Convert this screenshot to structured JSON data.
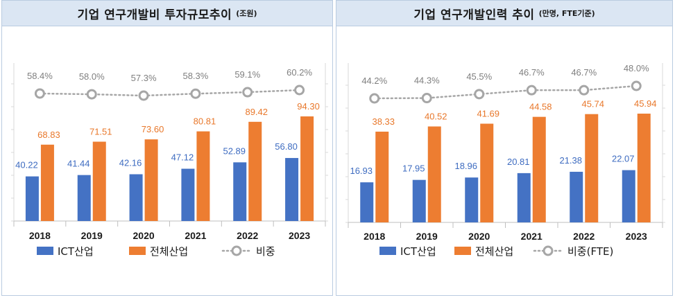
{
  "charts": [
    {
      "title": "기업 연구개발비 투자규모추이",
      "unit": "(조원)",
      "chart_data": {
        "type": "bar",
        "categories": [
          "2018",
          "2019",
          "2020",
          "2021",
          "2022",
          "2023"
        ],
        "series": [
          {
            "name": "ICT산업",
            "values": [
              40.22,
              41.44,
              42.16,
              47.12,
              52.89,
              56.8
            ],
            "labels": [
              "40.22",
              "41.44",
              "42.16",
              "47.12",
              "52.89",
              "56.80"
            ]
          },
          {
            "name": "전체산업",
            "values": [
              68.83,
              71.51,
              73.6,
              80.81,
              89.42,
              94.3
            ],
            "labels": [
              "68.83",
              "71.51",
              "73.60",
              "80.81",
              "89.42",
              "94.30"
            ]
          }
        ],
        "line": {
          "name": "비중",
          "values": [
            58.4,
            58.0,
            57.3,
            58.3,
            59.1,
            60.2
          ],
          "labels": [
            "58.4%",
            "58.0%",
            "57.3%",
            "58.3%",
            "59.1%",
            "60.2%"
          ]
        },
        "legend_position": "bottom",
        "gridlines": false
      }
    },
    {
      "title": "기업 연구개발인력 추이",
      "unit": "(만명, FTE기준)",
      "chart_data": {
        "type": "bar",
        "categories": [
          "2018",
          "2019",
          "2020",
          "2021",
          "2022",
          "2023"
        ],
        "series": [
          {
            "name": "ICT산업",
            "values": [
              16.93,
              17.95,
              18.96,
              20.81,
              21.38,
              22.07
            ],
            "labels": [
              "16.93",
              "17.95",
              "18.96",
              "20.81",
              "21.38",
              "22.07"
            ]
          },
          {
            "name": "전체산업",
            "values": [
              38.33,
              40.52,
              41.69,
              44.58,
              45.74,
              45.94
            ],
            "labels": [
              "38.33",
              "40.52",
              "41.69",
              "44.58",
              "45.74",
              "45.94"
            ]
          }
        ],
        "line": {
          "name": "비중(FTE)",
          "values": [
            44.2,
            44.3,
            45.5,
            46.7,
            46.7,
            48.0
          ],
          "labels": [
            "44.2%",
            "44.3%",
            "45.5%",
            "46.7%",
            "46.7%",
            "48.0%"
          ]
        },
        "legend_position": "bottom",
        "gridlines": false
      }
    }
  ],
  "colors": {
    "ict_bar": "#4472c4",
    "total_bar": "#ed7d31",
    "ratio_line": "#a6a6a6",
    "ict_label": "#3d6bc0",
    "total_label": "#e8772a",
    "ratio_label": "#7f7f7f"
  }
}
